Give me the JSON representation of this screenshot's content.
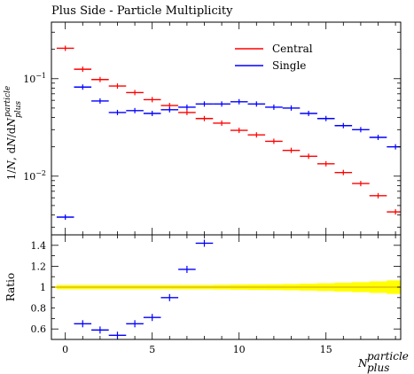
{
  "chart_data": {
    "title": "Plus Side - Particle Multiplicity",
    "type": "scatter",
    "main": {
      "ylabel": "1/N, dN/dN_plus^particle",
      "yscale": "log",
      "ylim": [
        0.0025,
        0.38
      ],
      "yticks": [
        {
          "value": 0.1,
          "label": "10^-1"
        },
        {
          "value": 0.01,
          "label": "10^-2"
        }
      ],
      "series": [
        {
          "name": "Central",
          "color": "#ff0000",
          "x": [
            0,
            1,
            2,
            3,
            4,
            5,
            6,
            7,
            8,
            9,
            10,
            11,
            12,
            13,
            14,
            15,
            16,
            17,
            18,
            19
          ],
          "y": [
            0.205,
            0.125,
            0.098,
            0.084,
            0.072,
            0.061,
            0.053,
            0.045,
            0.039,
            0.035,
            0.0295,
            0.0265,
            0.0228,
            0.0184,
            0.016,
            0.0134,
            0.0109,
            0.0084,
            0.0063,
            0.0043
          ]
        },
        {
          "name": "Single",
          "color": "#0000ff",
          "x": [
            0,
            1,
            2,
            3,
            4,
            5,
            6,
            7,
            8,
            9,
            10,
            11,
            12,
            13,
            14,
            15,
            16,
            17,
            18,
            19
          ],
          "y": [
            0.0038,
            0.082,
            0.059,
            0.045,
            0.047,
            0.044,
            0.048,
            0.051,
            0.055,
            0.055,
            0.058,
            0.055,
            0.051,
            0.05,
            0.044,
            0.039,
            0.033,
            0.03,
            0.025,
            0.02
          ]
        }
      ]
    },
    "ratio": {
      "ylabel": "Ratio",
      "ylim": [
        0.5,
        1.5
      ],
      "yticks": [
        0.6,
        0.8,
        1,
        1.2,
        1.4
      ],
      "band_color": "#ffff00",
      "band_half_width": [
        0.02,
        0.02,
        0.02,
        0.02,
        0.02,
        0.02,
        0.02,
        0.02,
        0.02,
        0.022,
        0.024,
        0.026,
        0.028,
        0.03,
        0.033,
        0.037,
        0.042,
        0.048,
        0.055,
        0.065
      ],
      "series": {
        "name": "Single",
        "color": "#0000ff",
        "x": [
          1,
          2,
          3,
          4,
          5,
          6,
          7,
          8
        ],
        "y": [
          0.65,
          0.59,
          0.54,
          0.65,
          0.71,
          0.9,
          1.17,
          1.42
        ]
      }
    },
    "xlim": [
      -0.8,
      19.3
    ],
    "xticks": [
      0,
      5,
      10,
      15
    ],
    "xlabel": "N_plus^particle",
    "legend_position": "top-right"
  }
}
